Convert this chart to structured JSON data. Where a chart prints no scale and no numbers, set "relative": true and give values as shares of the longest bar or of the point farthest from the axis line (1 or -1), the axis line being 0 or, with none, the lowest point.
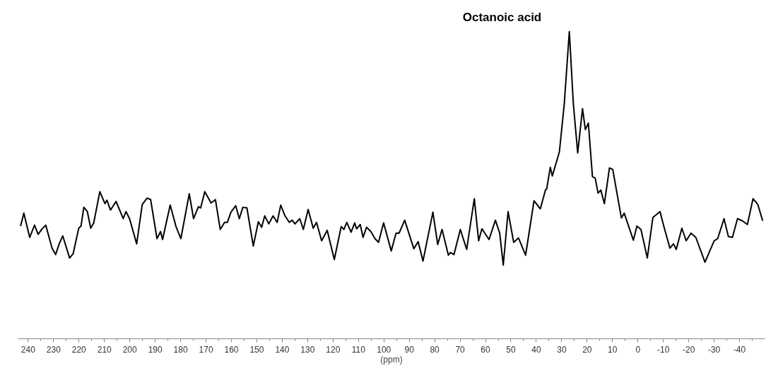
{
  "chart_data": {
    "type": "line",
    "relative": true,
    "xlabel": "(ppm)",
    "annotations": [
      "Octanoic acid"
    ],
    "xlim": [
      244,
      -50
    ],
    "xticks": [
      240,
      {
        "value": 235,
        "label": null
      },
      230,
      {
        "value": 225,
        "label": null
      },
      220,
      {
        "value": 215,
        "label": null
      },
      210,
      {
        "value": 205,
        "label": null
      },
      200,
      {
        "value": 195,
        "label": null
      },
      190,
      {
        "value": 185,
        "label": null
      },
      180,
      {
        "value": 175,
        "label": null
      },
      170,
      {
        "value": 165,
        "label": null
      },
      160,
      {
        "value": 155,
        "label": null
      },
      150,
      {
        "value": 145,
        "label": null
      },
      140,
      {
        "value": 135,
        "label": null
      },
      130,
      {
        "value": 125,
        "label": null
      },
      120,
      {
        "value": 115,
        "label": null
      },
      110,
      {
        "value": 105,
        "label": null
      },
      100,
      {
        "value": 95,
        "label": null
      },
      90,
      {
        "value": 85,
        "label": null
      },
      80,
      {
        "value": 75,
        "label": null
      },
      70,
      {
        "value": 65,
        "label": null
      },
      60,
      {
        "value": 55,
        "label": null
      },
      50,
      {
        "value": 45,
        "label": null
      },
      40,
      {
        "value": 35,
        "label": null
      },
      30,
      {
        "value": 25,
        "label": null
      },
      20,
      {
        "value": 15,
        "label": null
      },
      10,
      {
        "value": 5,
        "label": null
      },
      0,
      {
        "value": -5,
        "label": null
      },
      -10,
      {
        "value": -15,
        "label": null
      },
      -20,
      {
        "value": -25,
        "label": null
      },
      -30,
      {
        "value": -35,
        "label": null
      },
      -40,
      {
        "value": -45,
        "label": null
      }
    ],
    "grid": false,
    "marker": "none",
    "line_style": "solid",
    "series": [
      {
        "color": "#000000",
        "x": [
          243.0,
          241.7,
          239.4,
          237.5,
          236.1,
          234.5,
          233.1,
          230.6,
          229.2,
          227.8,
          226.4,
          223.7,
          222.3,
          220.1,
          219.2,
          218.1,
          216.7,
          215.4,
          214.2,
          211.8,
          209.8,
          209.0,
          207.6,
          205.4,
          202.6,
          201.5,
          200.1,
          197.3,
          195.1,
          193.2,
          191.8,
          189.3,
          187.9,
          187.1,
          184.1,
          181.8,
          179.9,
          176.6,
          174.9,
          173.0,
          172.1,
          170.5,
          168.0,
          166.3,
          164.4,
          162.7,
          161.6,
          160.2,
          158.3,
          156.9,
          155.5,
          153.9,
          151.4,
          149.4,
          148.1,
          146.9,
          145.3,
          143.6,
          142.0,
          140.6,
          138.9,
          137.2,
          136.1,
          135.0,
          133.1,
          131.7,
          129.8,
          127.8,
          126.5,
          124.5,
          122.3,
          119.5,
          116.8,
          115.7,
          114.6,
          112.9,
          111.5,
          110.7,
          109.3,
          108.2,
          106.8,
          105.1,
          103.5,
          102.1,
          100.1,
          97.1,
          95.2,
          94.0,
          91.8,
          88.2,
          86.5,
          84.6,
          80.7,
          78.8,
          77.1,
          74.6,
          73.8,
          72.4,
          69.9,
          67.4,
          64.4,
          62.7,
          61.4,
          58.6,
          56.1,
          54.4,
          53.0,
          51.1,
          48.9,
          47.0,
          44.2,
          40.9,
          38.4,
          36.4,
          35.9,
          34.5,
          33.7,
          31.7,
          30.9,
          29.0,
          27.0,
          25.4,
          23.7,
          21.8,
          20.7,
          19.5,
          17.9,
          16.8,
          15.7,
          14.6,
          13.2,
          11.2,
          9.9,
          6.5,
          5.4,
          1.8,
          0.4,
          -1.2,
          -3.7,
          -5.9,
          -8.7,
          -10.4,
          -12.6,
          -14.0,
          -15.1,
          -17.3,
          -19.0,
          -20.9,
          -22.8,
          -26.4,
          -30.0,
          -31.4,
          -33.9,
          -35.6,
          -37.2,
          -39.2,
          -41.1,
          -43.1,
          -45.3,
          -47.2,
          -49.1
        ],
        "values": [
          0.367,
          0.409,
          0.33,
          0.37,
          0.34,
          0.358,
          0.37,
          0.295,
          0.274,
          0.309,
          0.335,
          0.263,
          0.277,
          0.36,
          0.367,
          0.428,
          0.414,
          0.36,
          0.377,
          0.479,
          0.44,
          0.451,
          0.419,
          0.447,
          0.391,
          0.414,
          0.391,
          0.309,
          0.437,
          0.458,
          0.453,
          0.326,
          0.349,
          0.323,
          0.435,
          0.365,
          0.326,
          0.472,
          0.391,
          0.43,
          0.426,
          0.479,
          0.442,
          0.453,
          0.356,
          0.379,
          0.379,
          0.412,
          0.433,
          0.391,
          0.428,
          0.426,
          0.302,
          0.381,
          0.363,
          0.4,
          0.374,
          0.4,
          0.379,
          0.435,
          0.4,
          0.379,
          0.386,
          0.374,
          0.391,
          0.356,
          0.421,
          0.36,
          0.379,
          0.319,
          0.353,
          0.258,
          0.365,
          0.356,
          0.379,
          0.347,
          0.377,
          0.358,
          0.372,
          0.33,
          0.363,
          0.349,
          0.326,
          0.314,
          0.377,
          0.286,
          0.344,
          0.344,
          0.386,
          0.293,
          0.316,
          0.253,
          0.412,
          0.307,
          0.356,
          0.272,
          0.281,
          0.274,
          0.356,
          0.291,
          0.456,
          0.319,
          0.358,
          0.323,
          0.386,
          0.344,
          0.24,
          0.414,
          0.314,
          0.328,
          0.272,
          0.449,
          0.423,
          0.484,
          0.488,
          0.558,
          0.53,
          0.586,
          0.609,
          0.763,
          1.0,
          0.763,
          0.605,
          0.749,
          0.681,
          0.702,
          0.528,
          0.523,
          0.474,
          0.484,
          0.44,
          0.556,
          0.551,
          0.393,
          0.409,
          0.321,
          0.367,
          0.356,
          0.263,
          0.395,
          0.414,
          0.36,
          0.295,
          0.309,
          0.291,
          0.36,
          0.319,
          0.344,
          0.33,
          0.249,
          0.319,
          0.326,
          0.391,
          0.333,
          0.33,
          0.391,
          0.384,
          0.372,
          0.456,
          0.437,
          0.384
        ]
      }
    ]
  }
}
